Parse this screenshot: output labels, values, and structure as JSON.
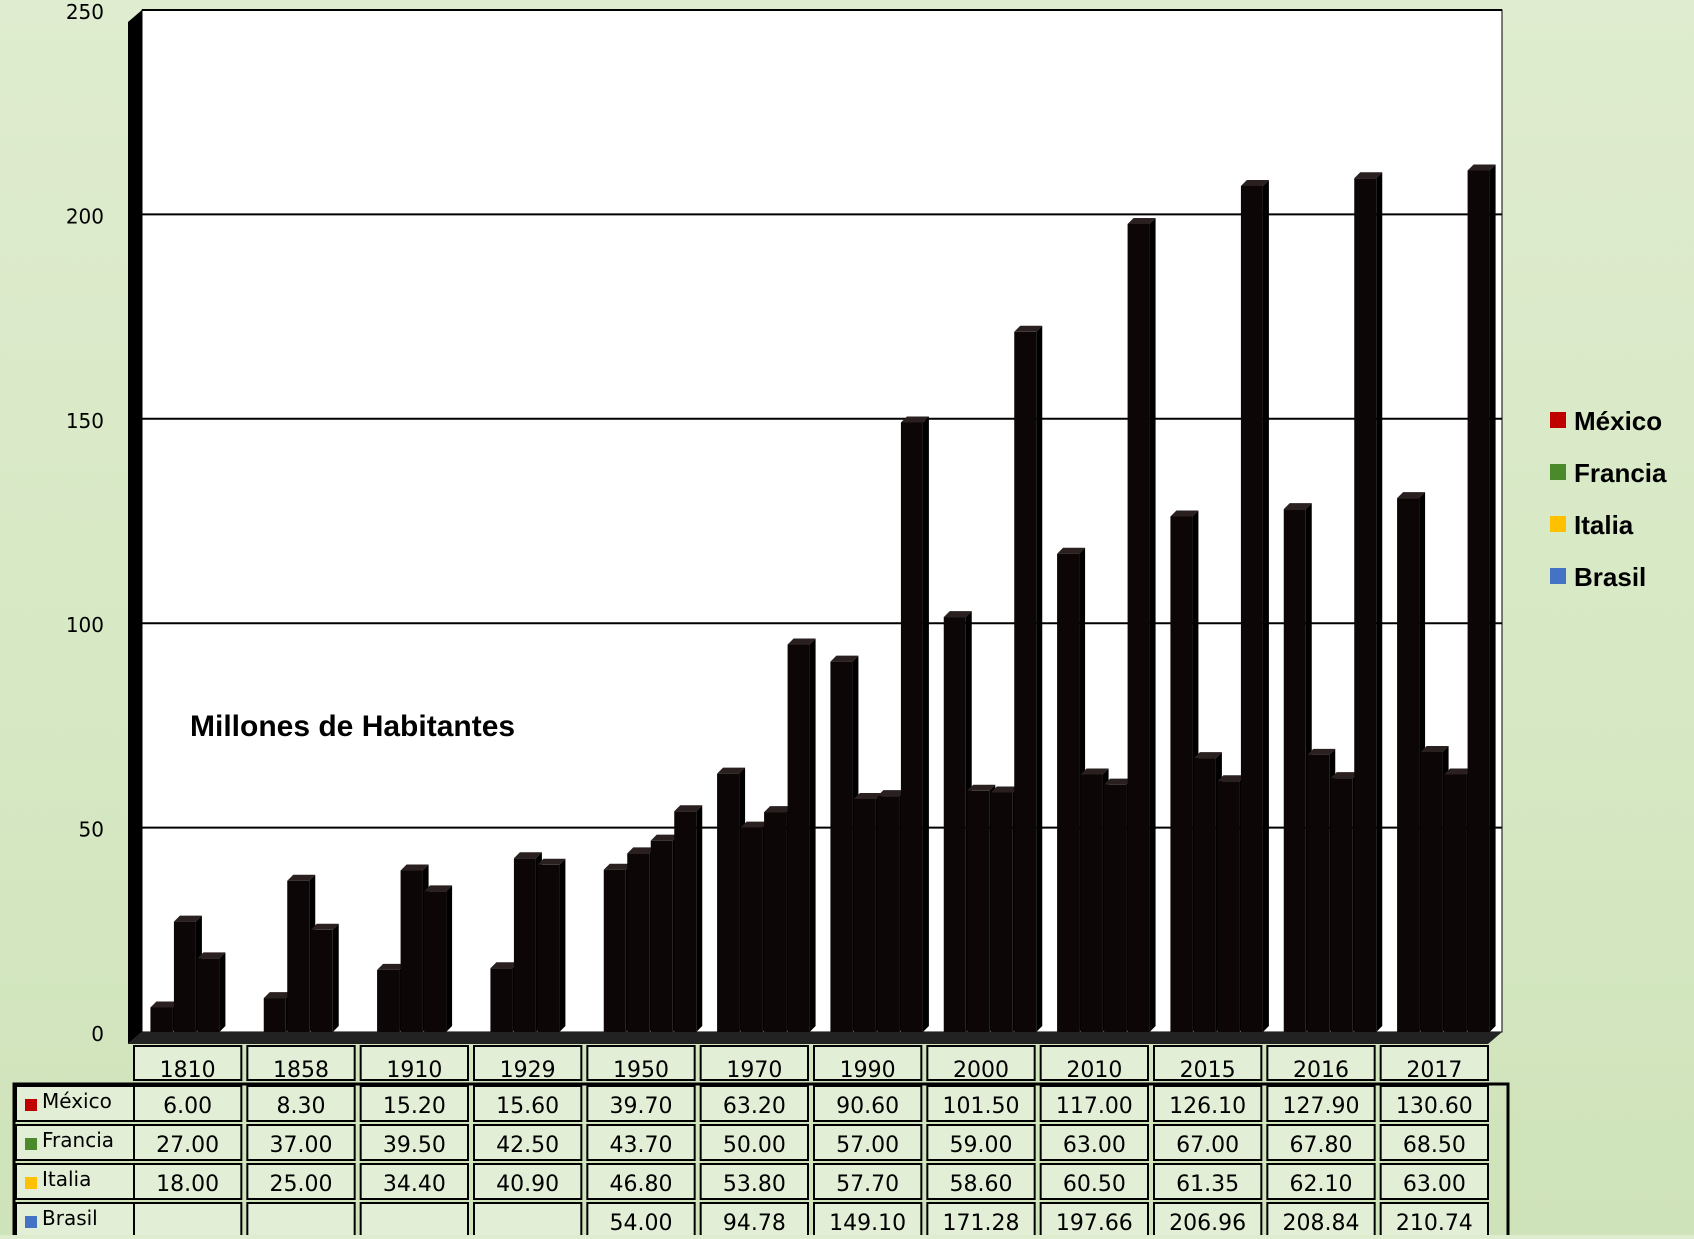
{
  "chart_data": {
    "type": "bar",
    "title": "",
    "xlabel": "",
    "ylabel": "",
    "annotation": "Millones de Habitantes",
    "ylim": [
      0,
      250
    ],
    "yticks": [
      0,
      50,
      100,
      150,
      200,
      250
    ],
    "grid": true,
    "legend_position": "right",
    "categories": [
      "1810",
      "1858",
      "1910",
      "1929",
      "1950",
      "1970",
      "1990",
      "2000",
      "2010",
      "2015",
      "2016",
      "2017"
    ],
    "series": [
      {
        "name": "México",
        "color": "#c00000",
        "values": [
          6.0,
          8.3,
          15.2,
          15.6,
          39.7,
          63.2,
          90.6,
          101.5,
          117.0,
          126.1,
          127.9,
          130.6
        ],
        "labels": [
          "6.00",
          "8.30",
          "15.20",
          "15.60",
          "39.70",
          "63.20",
          "90.60",
          "101.50",
          "117.00",
          "126.10",
          "127.90",
          "130.60"
        ]
      },
      {
        "name": "Francia",
        "color": "#4a8a2a",
        "values": [
          27.0,
          37.0,
          39.5,
          42.5,
          43.7,
          50.0,
          57.0,
          59.0,
          63.0,
          67.0,
          67.8,
          68.5
        ],
        "labels": [
          "27.00",
          "37.00",
          "39.50",
          "42.50",
          "43.70",
          "50.00",
          "57.00",
          "59.00",
          "63.00",
          "67.00",
          "67.80",
          "68.50"
        ]
      },
      {
        "name": "Italia",
        "color": "#ffc000",
        "values": [
          18.0,
          25.0,
          34.4,
          40.9,
          46.8,
          53.8,
          57.7,
          58.6,
          60.5,
          61.35,
          62.1,
          63.0
        ],
        "labels": [
          "18.00",
          "25.00",
          "34.40",
          "40.90",
          "46.80",
          "53.80",
          "57.70",
          "58.60",
          "60.50",
          "61.35",
          "62.10",
          "63.00"
        ]
      },
      {
        "name": "Brasil",
        "color": "#4472c4",
        "values": [
          null,
          null,
          null,
          null,
          54.0,
          94.78,
          149.1,
          171.28,
          197.66,
          206.96,
          208.84,
          210.74
        ],
        "labels": [
          "",
          "",
          "",
          "",
          "54.00",
          "94.78",
          "149.10",
          "171.28",
          "197.66",
          "206.96",
          "208.84",
          "210.74"
        ]
      }
    ]
  },
  "table_row_labels": [
    "México",
    "Francia",
    "Italia",
    "Brasil"
  ],
  "colors": {
    "background": "#d6e8c3",
    "plot_area": "#ffffff",
    "bar": "#0d0606",
    "cell_fill": "#e2efd6"
  }
}
